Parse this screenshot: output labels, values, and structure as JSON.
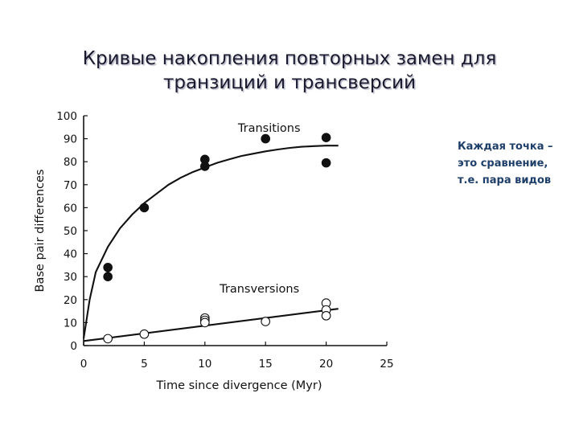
{
  "slide": {
    "title_lines": [
      "Кривые накопления повторных замен для",
      "транзиций и трансверсий"
    ],
    "note_lines": [
      "Каждая точка –",
      "это сравнение,",
      "т.е. пара видов"
    ]
  },
  "chart_data": {
    "type": "scatter",
    "xlabel": "Time since divergence (Myr)",
    "ylabel": "Base pair differences",
    "xlim": [
      0,
      25
    ],
    "ylim": [
      0,
      100
    ],
    "xticks": [
      0,
      5,
      10,
      15,
      20,
      25
    ],
    "yticks": [
      0,
      10,
      20,
      30,
      40,
      50,
      60,
      70,
      80,
      90,
      100
    ],
    "grid": false,
    "series": [
      {
        "name": "Transitions",
        "marker": "filled-circle",
        "points": [
          [
            2,
            34
          ],
          [
            2,
            30
          ],
          [
            5,
            60
          ],
          [
            10,
            81
          ],
          [
            10,
            78
          ],
          [
            15,
            90
          ],
          [
            20,
            90.5
          ],
          [
            20,
            79.5
          ]
        ],
        "fit_curve": [
          [
            0,
            3
          ],
          [
            0.5,
            20
          ],
          [
            1,
            32
          ],
          [
            2,
            43
          ],
          [
            3,
            51
          ],
          [
            4,
            57
          ],
          [
            5,
            62
          ],
          [
            6,
            66
          ],
          [
            7,
            70
          ],
          [
            8,
            73
          ],
          [
            9,
            75.5
          ],
          [
            10,
            77.5
          ],
          [
            11,
            79.5
          ],
          [
            12,
            81
          ],
          [
            13,
            82.5
          ],
          [
            14,
            83.5
          ],
          [
            15,
            84.5
          ],
          [
            16,
            85.3
          ],
          [
            17,
            86
          ],
          [
            18,
            86.5
          ],
          [
            19,
            86.8
          ],
          [
            20,
            87
          ],
          [
            21,
            87
          ]
        ]
      },
      {
        "name": "Transversions",
        "marker": "open-circle",
        "points": [
          [
            2,
            3
          ],
          [
            5,
            5
          ],
          [
            10,
            12
          ],
          [
            10,
            11
          ],
          [
            10,
            10
          ],
          [
            15,
            10.5
          ],
          [
            20,
            18.5
          ],
          [
            20,
            15.5
          ],
          [
            20,
            13
          ]
        ],
        "fit_curve": [
          [
            0,
            2
          ],
          [
            21,
            16
          ]
        ]
      }
    ]
  }
}
